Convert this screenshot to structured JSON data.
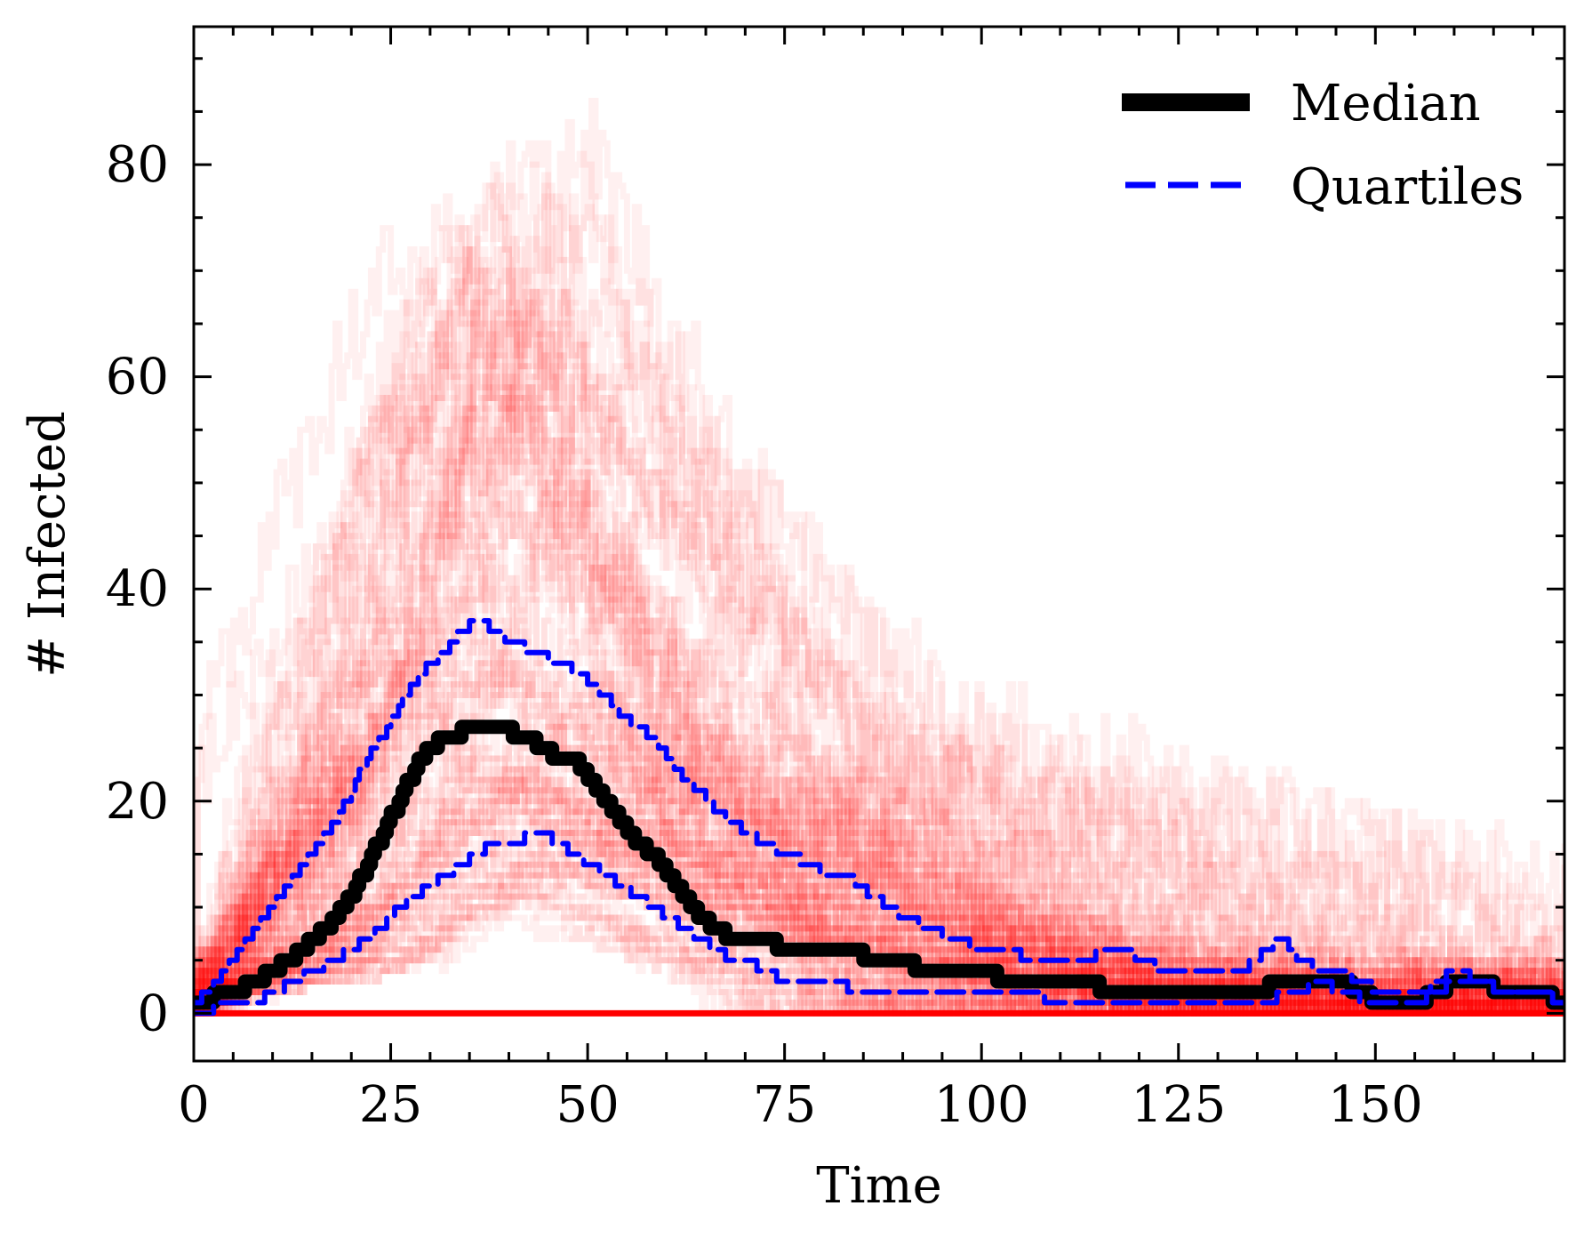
{
  "chart_data": {
    "type": "line",
    "title": "",
    "xlabel": "Time",
    "ylabel": "# Infected",
    "xlim": [
      0,
      174
    ],
    "ylim": [
      -4.5,
      93
    ],
    "xticks": [
      0,
      25,
      50,
      75,
      100,
      125,
      150
    ],
    "xtick_labels": [
      "0",
      "25",
      "50",
      "75",
      "100",
      "125",
      "150"
    ],
    "yticks": [
      0,
      20,
      40,
      60,
      80
    ],
    "ytick_labels": [
      "0",
      "20",
      "40",
      "60",
      "80"
    ],
    "ticks_direction": "in",
    "grid": false,
    "legend": {
      "position": "top-right",
      "entries": [
        {
          "label": "Median",
          "color": "#000000",
          "style": "solid"
        },
        {
          "label": "Quartiles",
          "color": "#0000ff",
          "style": "dashed"
        }
      ]
    },
    "colors": {
      "simulations": "#ff0000",
      "median": "#000000",
      "quartiles": "#0000ff",
      "baseline": "#ff0000"
    },
    "series": [
      {
        "name": "Median",
        "x": [
          0,
          5,
          8,
          10,
          12,
          15,
          18,
          20,
          22,
          24,
          26,
          28,
          30,
          32,
          34,
          36,
          38,
          40,
          42,
          44,
          46,
          48,
          50,
          52,
          54,
          56,
          58,
          60,
          62,
          64,
          66,
          68,
          70,
          72,
          75,
          78,
          80,
          83,
          86,
          88,
          90,
          92,
          95,
          98,
          100,
          103,
          106,
          110,
          113,
          116,
          120,
          125,
          130,
          135,
          138,
          140,
          143,
          145,
          148,
          150,
          153,
          155,
          158,
          160,
          163,
          166,
          170,
          174
        ],
        "y": [
          1,
          2,
          3,
          4,
          5,
          7,
          9,
          11,
          14,
          17,
          20,
          23,
          25,
          26,
          26.5,
          27,
          27,
          26.5,
          26,
          25,
          24,
          24,
          22,
          20,
          18,
          16,
          15,
          13,
          11,
          9,
          8,
          7,
          7,
          7,
          6,
          6,
          6,
          6,
          5,
          5,
          5,
          4,
          4,
          4,
          4,
          3,
          3,
          3,
          3,
          2,
          2,
          2,
          2,
          2,
          3,
          3,
          3,
          3,
          2,
          1,
          1,
          1,
          2,
          3,
          3,
          2,
          2,
          1
        ]
      },
      {
        "name": "Quartiles (upper)",
        "x": [
          0,
          3,
          6,
          9,
          12,
          15,
          18,
          20,
          22,
          24,
          26,
          28,
          30,
          32,
          34,
          36,
          38,
          40,
          43,
          46,
          49,
          52,
          54,
          56,
          58,
          60,
          62,
          64,
          66,
          68,
          70,
          72,
          75,
          78,
          80,
          83,
          86,
          88,
          90,
          93,
          96,
          100,
          103,
          106,
          110,
          113,
          116,
          118,
          120,
          123,
          126,
          130,
          133,
          136,
          138,
          140,
          143,
          145,
          148,
          150,
          153,
          156,
          158,
          160,
          163,
          166,
          170,
          174
        ],
        "y": [
          1,
          3,
          6,
          9,
          12,
          15,
          18,
          21,
          24,
          26,
          29,
          31,
          33,
          34,
          36,
          37,
          36,
          35,
          34,
          33,
          32,
          30,
          28,
          27,
          26,
          24,
          22,
          21,
          19,
          18,
          17,
          16,
          15,
          14,
          13,
          13,
          11,
          10,
          9,
          8,
          7,
          6,
          6,
          5,
          5,
          5,
          6,
          6,
          5,
          4,
          4,
          4,
          4,
          6,
          7,
          5,
          4,
          4,
          3,
          2,
          2,
          2,
          3,
          4,
          3,
          2,
          2,
          1
        ]
      },
      {
        "name": "Quartiles (lower)",
        "x": [
          0,
          5,
          8,
          10,
          13,
          15,
          18,
          20,
          22,
          24,
          26,
          28,
          30,
          32,
          34,
          36,
          38,
          40,
          42,
          44,
          46,
          48,
          50,
          52,
          54,
          56,
          58,
          60,
          62,
          64,
          66,
          68,
          70,
          72,
          75,
          80,
          85,
          90,
          95,
          100,
          105,
          110,
          115,
          120,
          125,
          130,
          135,
          140,
          143,
          145,
          150,
          155,
          158,
          160,
          163,
          166,
          170,
          174
        ],
        "y": [
          0,
          1,
          1,
          2,
          3,
          4,
          5,
          6,
          7,
          8,
          10,
          11,
          12,
          13,
          14,
          15,
          16,
          16,
          16.5,
          17,
          16,
          15,
          14,
          13,
          12,
          11,
          10,
          9,
          8,
          7,
          6,
          5,
          5,
          4,
          3,
          3,
          2,
          2,
          2,
          2,
          2,
          1,
          1,
          1,
          1,
          1,
          1,
          2,
          3,
          2,
          1,
          1,
          2,
          3,
          3,
          2,
          2,
          1
        ]
      }
    ]
  }
}
